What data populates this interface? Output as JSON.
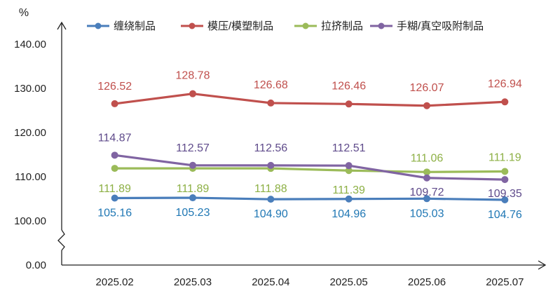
{
  "chart_data": {
    "type": "line",
    "title": "",
    "xlabel": "",
    "ylabel": "%",
    "categories": [
      "2025.02",
      "2025.03",
      "2025.04",
      "2025.05",
      "2025.06",
      "2025.07"
    ],
    "y_ticks": [
      "0.00",
      "100.00",
      "110.00",
      "120.00",
      "130.00",
      "140.00"
    ],
    "ylim": [
      0,
      140
    ],
    "y_axis_break": [
      0,
      100
    ],
    "grid": false,
    "legend_position": "top",
    "series": [
      {
        "name": "缠绕制品",
        "color": "#4a7ebb",
        "label_color": "#1f77b4",
        "values": [
          105.16,
          105.23,
          104.9,
          104.96,
          105.03,
          104.76
        ],
        "labels": [
          "105.16",
          "105.23",
          "104.90",
          "104.96",
          "105.03",
          "104.76"
        ]
      },
      {
        "name": "模压/模塑制品",
        "color": "#c0504d",
        "label_color": "#c0504d",
        "values": [
          126.52,
          128.78,
          126.68,
          126.46,
          126.07,
          126.94
        ],
        "labels": [
          "126.52",
          "128.78",
          "126.68",
          "126.46",
          "126.07",
          "126.94"
        ]
      },
      {
        "name": "拉挤制品",
        "color": "#9bbb59",
        "label_color": "#8db045",
        "values": [
          111.89,
          111.89,
          111.88,
          111.39,
          111.06,
          111.19
        ],
        "labels": [
          "111.89",
          "111.89",
          "111.88",
          "111.39",
          "111.06",
          "111.19"
        ]
      },
      {
        "name": "手糊/真空吸附制品",
        "color": "#8064a2",
        "label_color": "#5f4b8b",
        "values": [
          114.87,
          112.57,
          112.56,
          112.51,
          109.72,
          109.35
        ],
        "labels": [
          "114.87",
          "112.57",
          "112.56",
          "112.51",
          "109.72",
          "109.35"
        ]
      }
    ]
  }
}
